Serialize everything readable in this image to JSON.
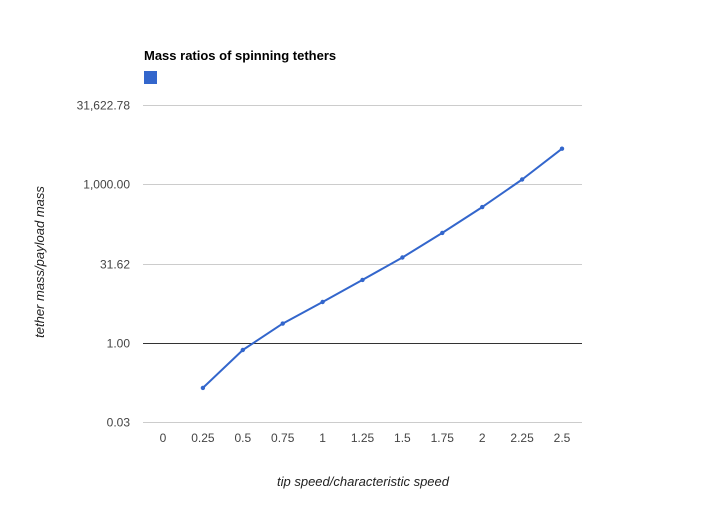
{
  "chart_data": {
    "type": "line",
    "title": "Mass ratios of spinning tethers",
    "xlabel": "tip speed/characteristic speed",
    "ylabel": "tether mass/payload mass",
    "y_scale": "log",
    "x_categories": [
      "0",
      "0.25",
      "0.5",
      "0.75",
      "1",
      "1.25",
      "1.5",
      "1.75",
      "2",
      "2.25",
      "2.5"
    ],
    "y_ticks": [
      {
        "value": 0.03162,
        "label": "0.03"
      },
      {
        "value": 1,
        "label": "1.00"
      },
      {
        "value": 31.62,
        "label": "31.62"
      },
      {
        "value": 1000,
        "label": "1,000.00"
      },
      {
        "value": 31622.78,
        "label": "31,622.78"
      }
    ],
    "ylim": [
      0.03162,
      31622.78
    ],
    "grid": true,
    "legend": "top-left",
    "series": [
      {
        "color": "#3366cc",
        "x": [
          0.25,
          0.5,
          0.75,
          1,
          1.25,
          1.5,
          1.75,
          2,
          2.25,
          2.5
        ],
        "y": [
          0.14,
          0.73,
          2.3,
          5.9,
          15.5,
          41,
          120,
          370,
          1230,
          4700
        ]
      }
    ]
  }
}
